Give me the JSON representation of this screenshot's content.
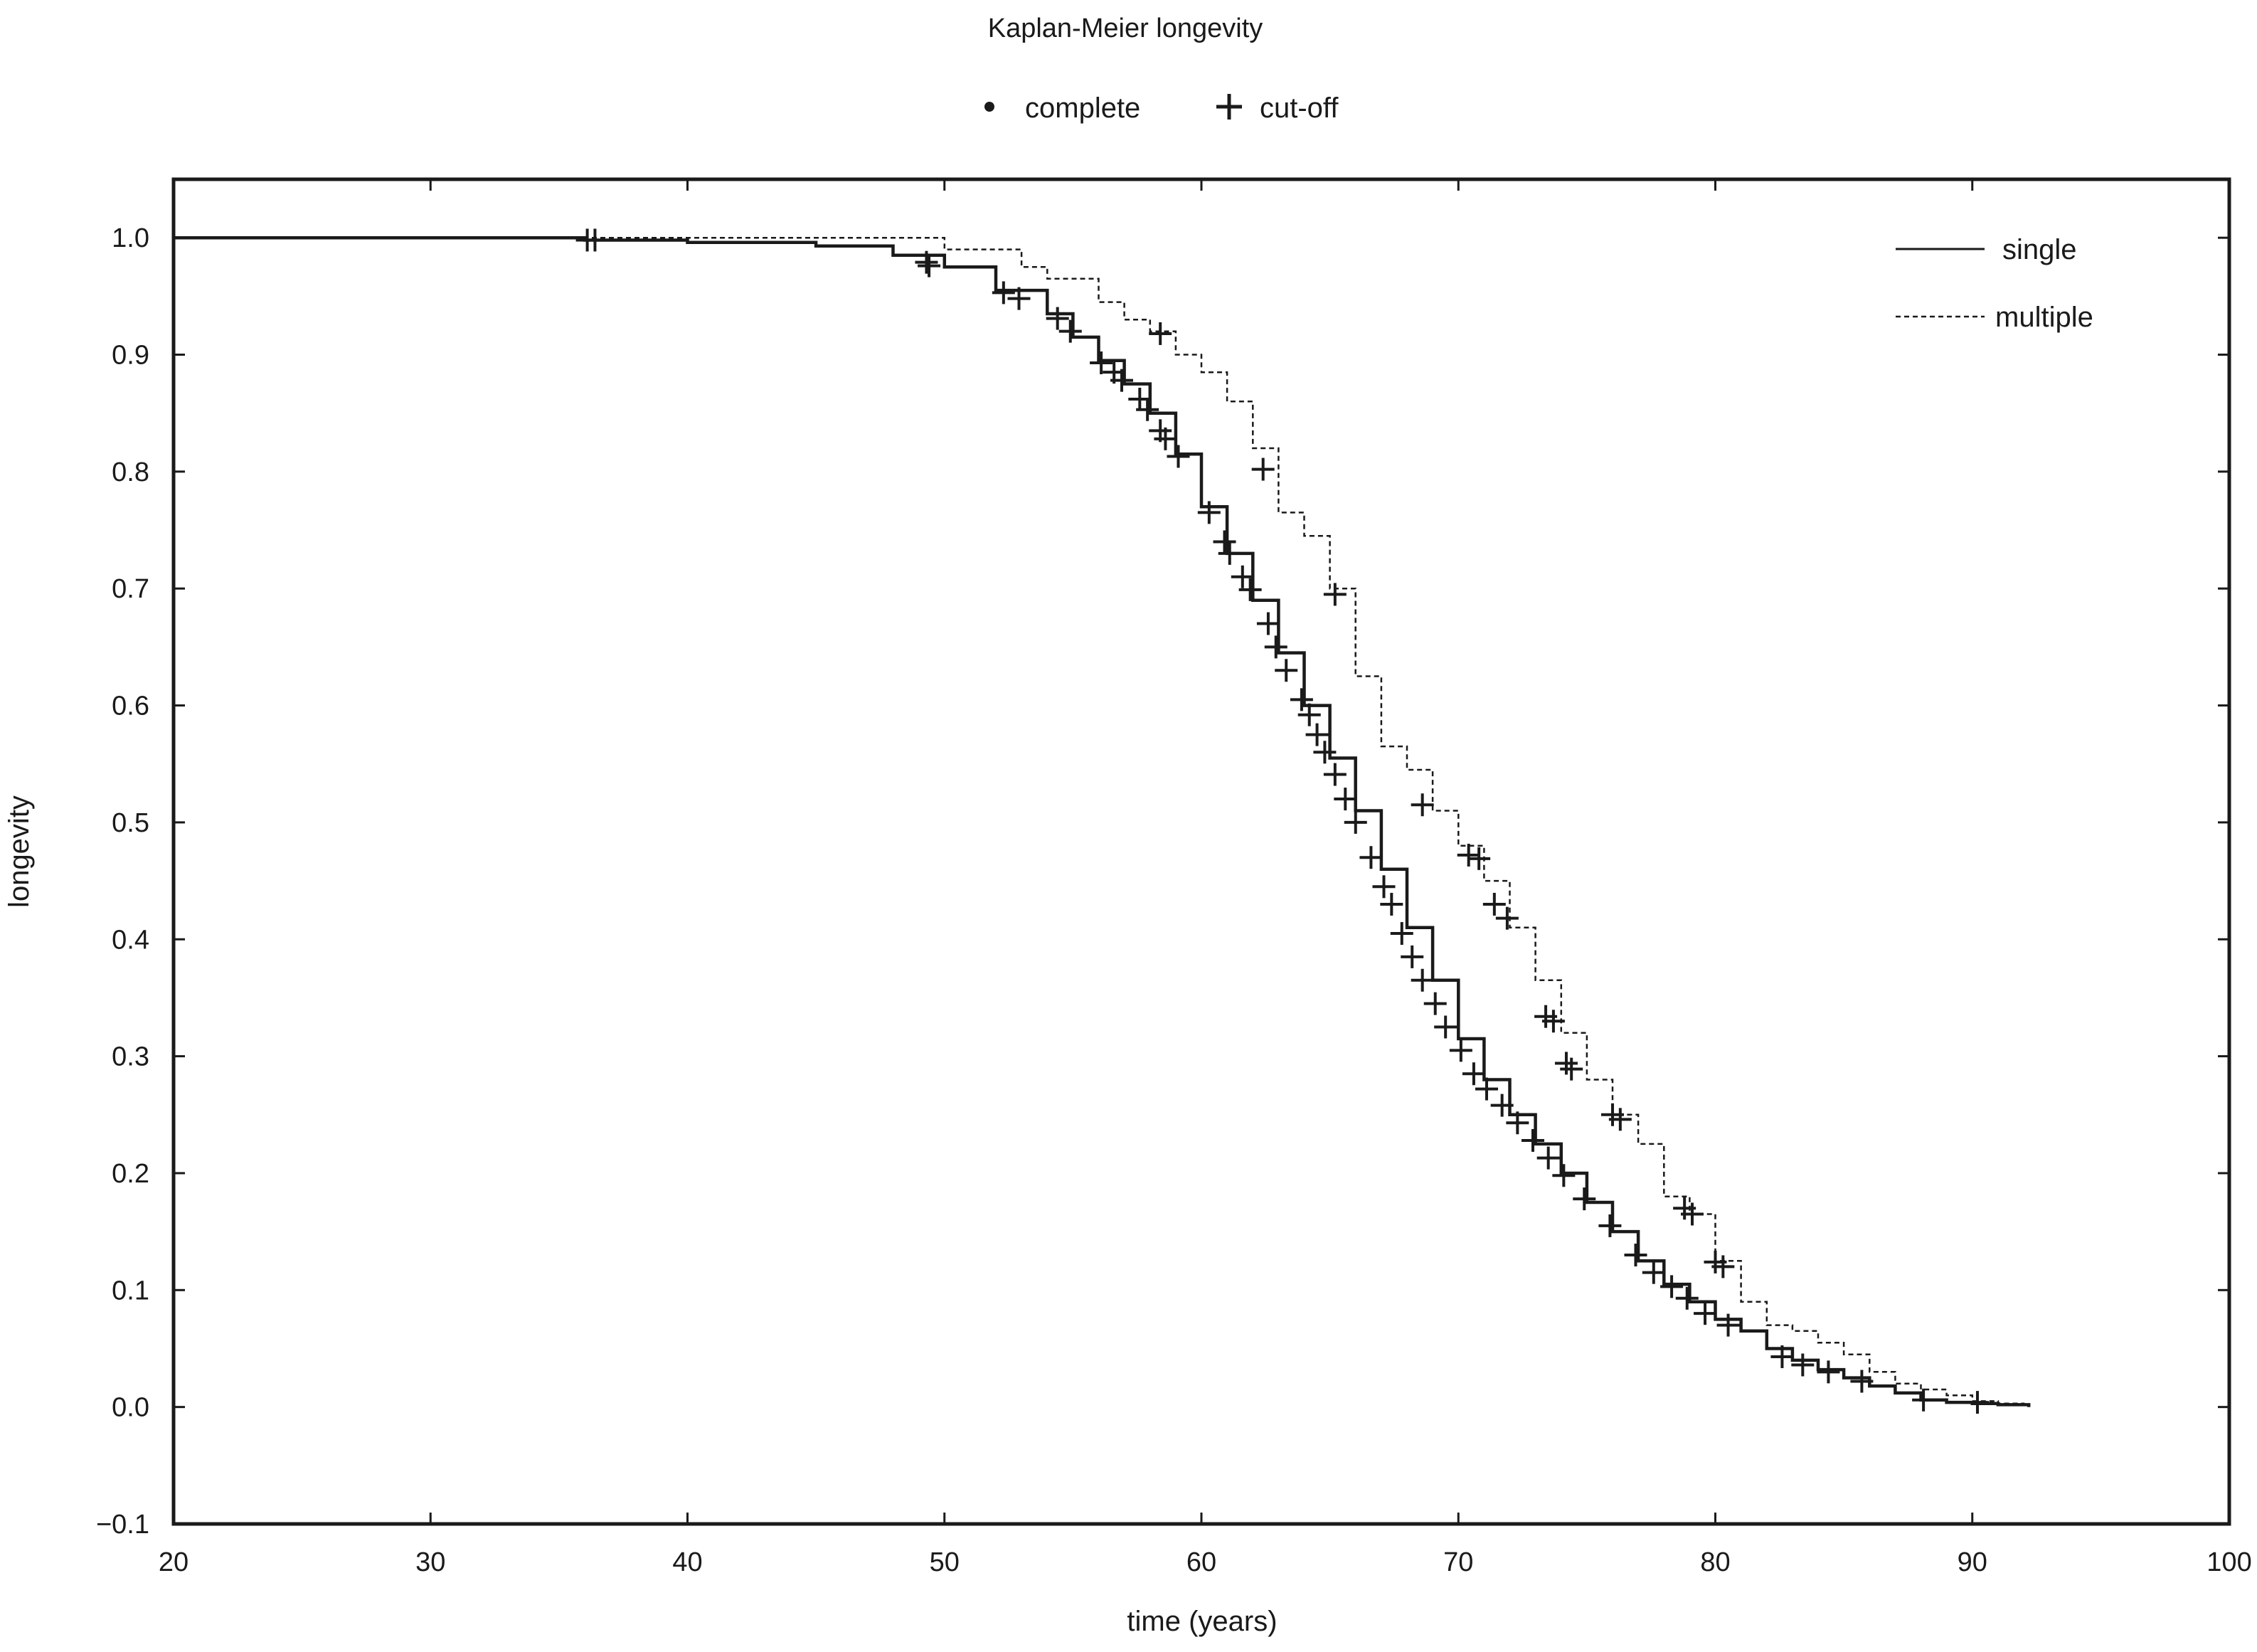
{
  "chart_data": {
    "type": "line",
    "title": "Kaplan-Meier longevity",
    "xlabel": "time (years)",
    "ylabel": "longevity",
    "xlim": [
      20,
      100
    ],
    "ylim": [
      -0.1,
      1.05
    ],
    "x_ticks": [
      20,
      30,
      40,
      50,
      60,
      70,
      80,
      90,
      100
    ],
    "x_tick_labels": [
      "20",
      "30",
      "40",
      "50",
      "60",
      "70",
      "80",
      "90",
      "100"
    ],
    "y_ticks": [
      1.0,
      0.9,
      0.8,
      0.7,
      0.6,
      0.5,
      0.4,
      0.3,
      0.2,
      0.1,
      0.0,
      -0.1
    ],
    "y_tick_labels": [
      "1.0",
      "0.9",
      "0.8",
      "0.7",
      "0.6",
      "0.5",
      "0.4",
      "0.3",
      "0.2",
      "0.1",
      "0.0",
      "−0.1"
    ],
    "grid": false,
    "marker_legend": {
      "position": "top-center",
      "items": [
        {
          "marker": "dot",
          "label": "complete"
        },
        {
          "marker": "plus",
          "label": "cut-off"
        }
      ]
    },
    "series": [
      {
        "name": "single",
        "line_style": "solid",
        "x": [
          20,
          33,
          36,
          40,
          45,
          48,
          50,
          52,
          54,
          55,
          56,
          57,
          58,
          59,
          60,
          61,
          62,
          63,
          64,
          65,
          66,
          67,
          68,
          69,
          70,
          71,
          72,
          73,
          74,
          75,
          76,
          77,
          78,
          79,
          80,
          81,
          82,
          83,
          84,
          85,
          86,
          87,
          88,
          89,
          90,
          91,
          92.2
        ],
        "y": [
          1.0,
          1.0,
          0.998,
          0.996,
          0.993,
          0.985,
          0.975,
          0.955,
          0.935,
          0.915,
          0.895,
          0.875,
          0.85,
          0.815,
          0.77,
          0.73,
          0.69,
          0.645,
          0.6,
          0.555,
          0.51,
          0.46,
          0.41,
          0.365,
          0.315,
          0.28,
          0.25,
          0.225,
          0.2,
          0.175,
          0.15,
          0.125,
          0.105,
          0.09,
          0.075,
          0.065,
          0.05,
          0.04,
          0.032,
          0.025,
          0.018,
          0.012,
          0.006,
          0.004,
          0.003,
          0.002,
          0.0
        ],
        "cutoff_marks": [
          [
            36.1,
            0.998
          ],
          [
            36.4,
            0.998
          ],
          [
            49.3,
            0.979
          ],
          [
            49.4,
            0.976
          ],
          [
            52.3,
            0.953
          ],
          [
            52.9,
            0.948
          ],
          [
            54.4,
            0.931
          ],
          [
            54.9,
            0.92
          ],
          [
            56.1,
            0.893
          ],
          [
            56.6,
            0.885
          ],
          [
            56.9,
            0.878
          ],
          [
            57.6,
            0.862
          ],
          [
            57.9,
            0.853
          ],
          [
            58.4,
            0.835
          ],
          [
            58.6,
            0.828
          ],
          [
            59.1,
            0.813
          ],
          [
            60.3,
            0.765
          ],
          [
            60.9,
            0.74
          ],
          [
            61.1,
            0.73
          ],
          [
            61.6,
            0.71
          ],
          [
            61.9,
            0.699
          ],
          [
            62.6,
            0.67
          ],
          [
            62.9,
            0.65
          ],
          [
            63.3,
            0.63
          ],
          [
            63.9,
            0.605
          ],
          [
            64.2,
            0.592
          ],
          [
            64.5,
            0.575
          ],
          [
            64.8,
            0.56
          ],
          [
            65.2,
            0.541
          ],
          [
            65.6,
            0.52
          ],
          [
            66.0,
            0.5
          ],
          [
            66.6,
            0.47
          ],
          [
            67.1,
            0.445
          ],
          [
            67.4,
            0.43
          ],
          [
            67.8,
            0.405
          ],
          [
            68.2,
            0.385
          ],
          [
            68.6,
            0.365
          ],
          [
            69.1,
            0.345
          ],
          [
            69.5,
            0.325
          ],
          [
            70.1,
            0.305
          ],
          [
            70.6,
            0.285
          ],
          [
            71.1,
            0.272
          ],
          [
            71.7,
            0.258
          ],
          [
            72.3,
            0.243
          ],
          [
            72.9,
            0.228
          ],
          [
            73.5,
            0.213
          ],
          [
            74.1,
            0.198
          ],
          [
            74.9,
            0.178
          ],
          [
            75.9,
            0.155
          ],
          [
            76.9,
            0.13
          ],
          [
            77.6,
            0.115
          ],
          [
            78.3,
            0.103
          ],
          [
            78.9,
            0.093
          ],
          [
            79.6,
            0.08
          ],
          [
            80.5,
            0.07
          ],
          [
            82.6,
            0.043
          ],
          [
            83.4,
            0.036
          ],
          [
            84.4,
            0.03
          ],
          [
            85.7,
            0.022
          ],
          [
            88.1,
            0.006
          ],
          [
            90.2,
            0.004
          ]
        ]
      },
      {
        "name": "multiple",
        "line_style": "dashed",
        "x": [
          20,
          49,
          50,
          52,
          53,
          54,
          56,
          57,
          58,
          59,
          60,
          61,
          62,
          63,
          64,
          65,
          66,
          67,
          68,
          69,
          70,
          71,
          72,
          73,
          74,
          75,
          76,
          77,
          78,
          79,
          80,
          81,
          82,
          83,
          84,
          85,
          86,
          87,
          88,
          89,
          90,
          91,
          92
        ],
        "y": [
          1.0,
          1.0,
          0.99,
          0.99,
          0.975,
          0.965,
          0.945,
          0.93,
          0.92,
          0.9,
          0.885,
          0.86,
          0.82,
          0.765,
          0.745,
          0.7,
          0.625,
          0.565,
          0.545,
          0.51,
          0.48,
          0.45,
          0.41,
          0.365,
          0.32,
          0.28,
          0.25,
          0.225,
          0.18,
          0.165,
          0.125,
          0.09,
          0.07,
          0.065,
          0.055,
          0.045,
          0.03,
          0.02,
          0.015,
          0.01,
          0.005,
          0.003,
          0.0
        ],
        "cutoff_marks": [
          [
            58.4,
            0.918
          ],
          [
            62.4,
            0.802
          ],
          [
            65.2,
            0.695
          ],
          [
            68.6,
            0.515
          ],
          [
            70.4,
            0.472
          ],
          [
            70.8,
            0.469
          ],
          [
            71.4,
            0.43
          ],
          [
            71.9,
            0.418
          ],
          [
            73.4,
            0.334
          ],
          [
            73.7,
            0.33
          ],
          [
            74.2,
            0.294
          ],
          [
            74.4,
            0.289
          ],
          [
            76.0,
            0.25
          ],
          [
            76.3,
            0.246
          ],
          [
            78.8,
            0.17
          ],
          [
            79.1,
            0.165
          ],
          [
            80.0,
            0.124
          ],
          [
            80.3,
            0.12
          ]
        ]
      }
    ],
    "series_legend_position": "top-right"
  }
}
